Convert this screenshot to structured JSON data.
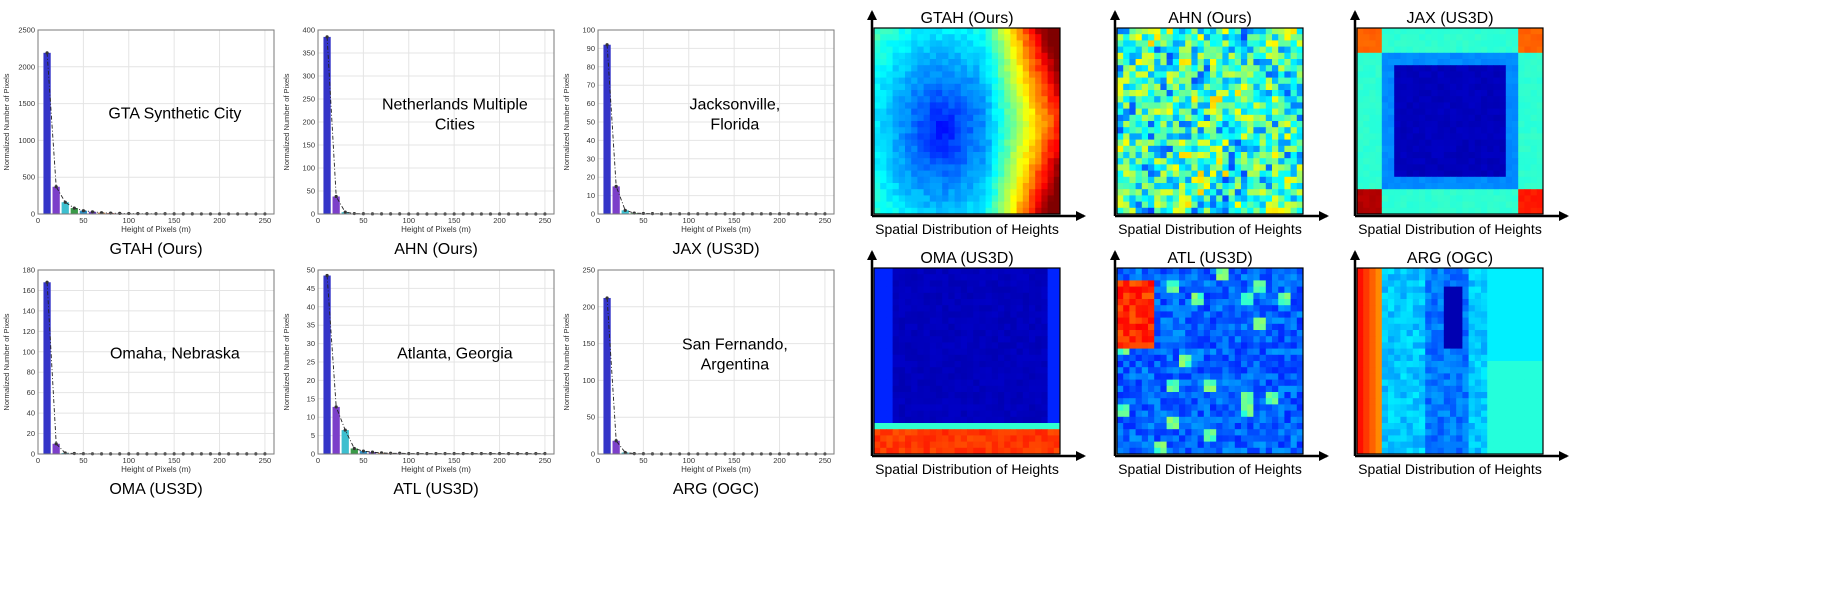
{
  "chart_data": [
    {
      "type": "bar",
      "caption": "GTAH (Ours)",
      "annotation": [
        "GTA Synthetic City"
      ],
      "xlabel": "Height of Pixels (m)",
      "ylabel": "Normalized Number of Pixels",
      "xlim": [
        0,
        260
      ],
      "ylim": [
        0,
        2500
      ],
      "xticks": [
        0,
        50,
        100,
        150,
        200,
        250
      ],
      "yticks": [
        0,
        500,
        1000,
        1500,
        2000,
        2500
      ],
      "grid": true,
      "x": [
        10,
        20,
        30,
        40,
        50,
        60,
        70,
        80,
        90,
        100,
        110,
        120,
        130,
        140,
        150,
        160,
        170,
        180,
        190,
        200,
        210,
        220,
        230,
        240,
        250
      ],
      "values": [
        2190,
        370,
        160,
        80,
        45,
        30,
        18,
        12,
        8,
        6,
        5,
        4,
        3,
        3,
        2,
        2,
        2,
        1,
        1,
        1,
        1,
        1,
        1,
        1,
        1
      ]
    },
    {
      "type": "bar",
      "caption": "AHN (Ours)",
      "annotation": [
        "Netherlands Multiple",
        "Cities"
      ],
      "xlabel": "Height of Pixels (m)",
      "ylabel": "Normalized Number of Pixels",
      "xlim": [
        0,
        260
      ],
      "ylim": [
        0,
        400
      ],
      "xticks": [
        0,
        50,
        100,
        150,
        200,
        250
      ],
      "yticks": [
        0,
        50,
        100,
        150,
        200,
        250,
        300,
        350,
        400
      ],
      "grid": true,
      "x": [
        10,
        20,
        30,
        40,
        50,
        60,
        70,
        80,
        90,
        100,
        110,
        120,
        130,
        140,
        150,
        160,
        170,
        180,
        190,
        200,
        210,
        220,
        230,
        240,
        250
      ],
      "values": [
        385,
        38,
        4,
        1,
        0.5,
        0.4,
        0.3,
        0.2,
        0.2,
        0.1,
        0.1,
        0.1,
        0.1,
        0.1,
        0.1,
        0.1,
        0.1,
        0.1,
        0.1,
        0.1,
        0.1,
        0.1,
        0.1,
        0.1,
        0.1
      ]
    },
    {
      "type": "bar",
      "caption": "JAX (US3D)",
      "annotation": [
        "Jacksonville,",
        "Florida"
      ],
      "xlabel": "Height of Pixels (m)",
      "ylabel": "Normalized Number of Pixels",
      "xlim": [
        0,
        260
      ],
      "ylim": [
        0,
        100
      ],
      "xticks": [
        0,
        50,
        100,
        150,
        200,
        250
      ],
      "yticks": [
        0,
        10,
        20,
        30,
        40,
        50,
        60,
        70,
        80,
        90,
        100
      ],
      "grid": true,
      "x": [
        10,
        20,
        30,
        40,
        50,
        60,
        70,
        80,
        90,
        100,
        110,
        120,
        130,
        140,
        150,
        160,
        170,
        180,
        190,
        200,
        210,
        220,
        230,
        240,
        250
      ],
      "values": [
        92,
        15,
        2,
        0.5,
        0.3,
        0.2,
        0.1,
        0.1,
        0.1,
        0.1,
        0.1,
        0.1,
        0.1,
        0.1,
        0.1,
        0.1,
        0.1,
        0.1,
        0.1,
        0.1,
        0.1,
        0.1,
        0.1,
        0.1,
        0.1
      ]
    },
    {
      "type": "bar",
      "caption": "OMA (US3D)",
      "annotation": [
        "Omaha,  Nebraska"
      ],
      "xlabel": "Height of Pixels (m)",
      "ylabel": "Normalized Number of Pixels",
      "xlim": [
        0,
        260
      ],
      "ylim": [
        0,
        180
      ],
      "xticks": [
        0,
        50,
        100,
        150,
        200,
        250
      ],
      "yticks": [
        0,
        20,
        40,
        60,
        80,
        100,
        120,
        140,
        160,
        180
      ],
      "grid": true,
      "x": [
        10,
        20,
        30,
        40,
        50,
        60,
        70,
        80,
        90,
        100,
        110,
        120,
        130,
        140,
        150,
        160,
        170,
        180,
        190,
        200,
        210,
        220,
        230,
        240,
        250
      ],
      "values": [
        168,
        10,
        1,
        0.5,
        0.3,
        0.2,
        0.1,
        0.1,
        0.1,
        0.1,
        0.1,
        0.1,
        0.1,
        0.1,
        0.1,
        0.1,
        0.1,
        0.1,
        0.1,
        0.1,
        0.1,
        0.1,
        0.1,
        0.1,
        0.1
      ]
    },
    {
      "type": "bar",
      "caption": "ATL (US3D)",
      "annotation": [
        "Atlanta, Georgia"
      ],
      "xlabel": "Height of Pixels (m)",
      "ylabel": "Normalized Number of Pixels",
      "xlim": [
        0,
        260
      ],
      "ylim": [
        0,
        50
      ],
      "xticks": [
        0,
        50,
        100,
        150,
        200,
        250
      ],
      "yticks": [
        0,
        5,
        10,
        15,
        20,
        25,
        30,
        35,
        40,
        45,
        50
      ],
      "grid": true,
      "x": [
        10,
        20,
        30,
        40,
        50,
        60,
        70,
        80,
        90,
        100,
        110,
        120,
        130,
        140,
        150,
        160,
        170,
        180,
        190,
        200,
        210,
        220,
        230,
        240,
        250
      ],
      "values": [
        48.5,
        12.8,
        6.5,
        1.5,
        0.8,
        0.5,
        0.3,
        0.2,
        0.2,
        0.1,
        0.1,
        0.1,
        0.1,
        0.1,
        0.1,
        0.1,
        0.1,
        0.1,
        0.1,
        0.1,
        0.1,
        0.1,
        0.1,
        0.1,
        0.1
      ]
    },
    {
      "type": "bar",
      "caption": "ARG (OGC)",
      "annotation": [
        "San  Fernando,",
        "Argentina"
      ],
      "xlabel": "Height of Pixels (m)",
      "ylabel": "Normalized Number of Pixels",
      "xlim": [
        0,
        260
      ],
      "ylim": [
        0,
        250
      ],
      "xticks": [
        0,
        50,
        100,
        150,
        200,
        250
      ],
      "yticks": [
        0,
        50,
        100,
        150,
        200,
        250
      ],
      "grid": true,
      "x": [
        10,
        20,
        30,
        40,
        50,
        60,
        70,
        80,
        90,
        100,
        110,
        120,
        130,
        140,
        150,
        160,
        170,
        180,
        190,
        200,
        210,
        220,
        230,
        240,
        250
      ],
      "values": [
        212,
        18,
        2,
        0.5,
        0.3,
        0.2,
        0.1,
        0.1,
        0.1,
        0.1,
        0.1,
        0.1,
        0.1,
        0.1,
        0.1,
        0.1,
        0.1,
        0.1,
        0.1,
        0.1,
        0.1,
        0.1,
        0.1,
        0.1,
        0.1
      ]
    }
  ],
  "height_maps": {
    "xlabel": "Spatial Distribution of Heights",
    "colormap": [
      "#00007f",
      "#0000ff",
      "#0080ff",
      "#00ffff",
      "#80ff80",
      "#ffff00",
      "#ff8000",
      "#ff0000",
      "#7f0000"
    ],
    "maps": [
      {
        "title": "GTAH (Ours)",
        "pattern": "gtah"
      },
      {
        "title": "AHN (Ours)",
        "pattern": "ahn"
      },
      {
        "title": "JAX (US3D)",
        "pattern": "jax"
      },
      {
        "title": "OMA (US3D)",
        "pattern": "oma"
      },
      {
        "title": "ATL (US3D)",
        "pattern": "atl"
      },
      {
        "title": "ARG (OGC)",
        "pattern": "arg"
      }
    ]
  }
}
